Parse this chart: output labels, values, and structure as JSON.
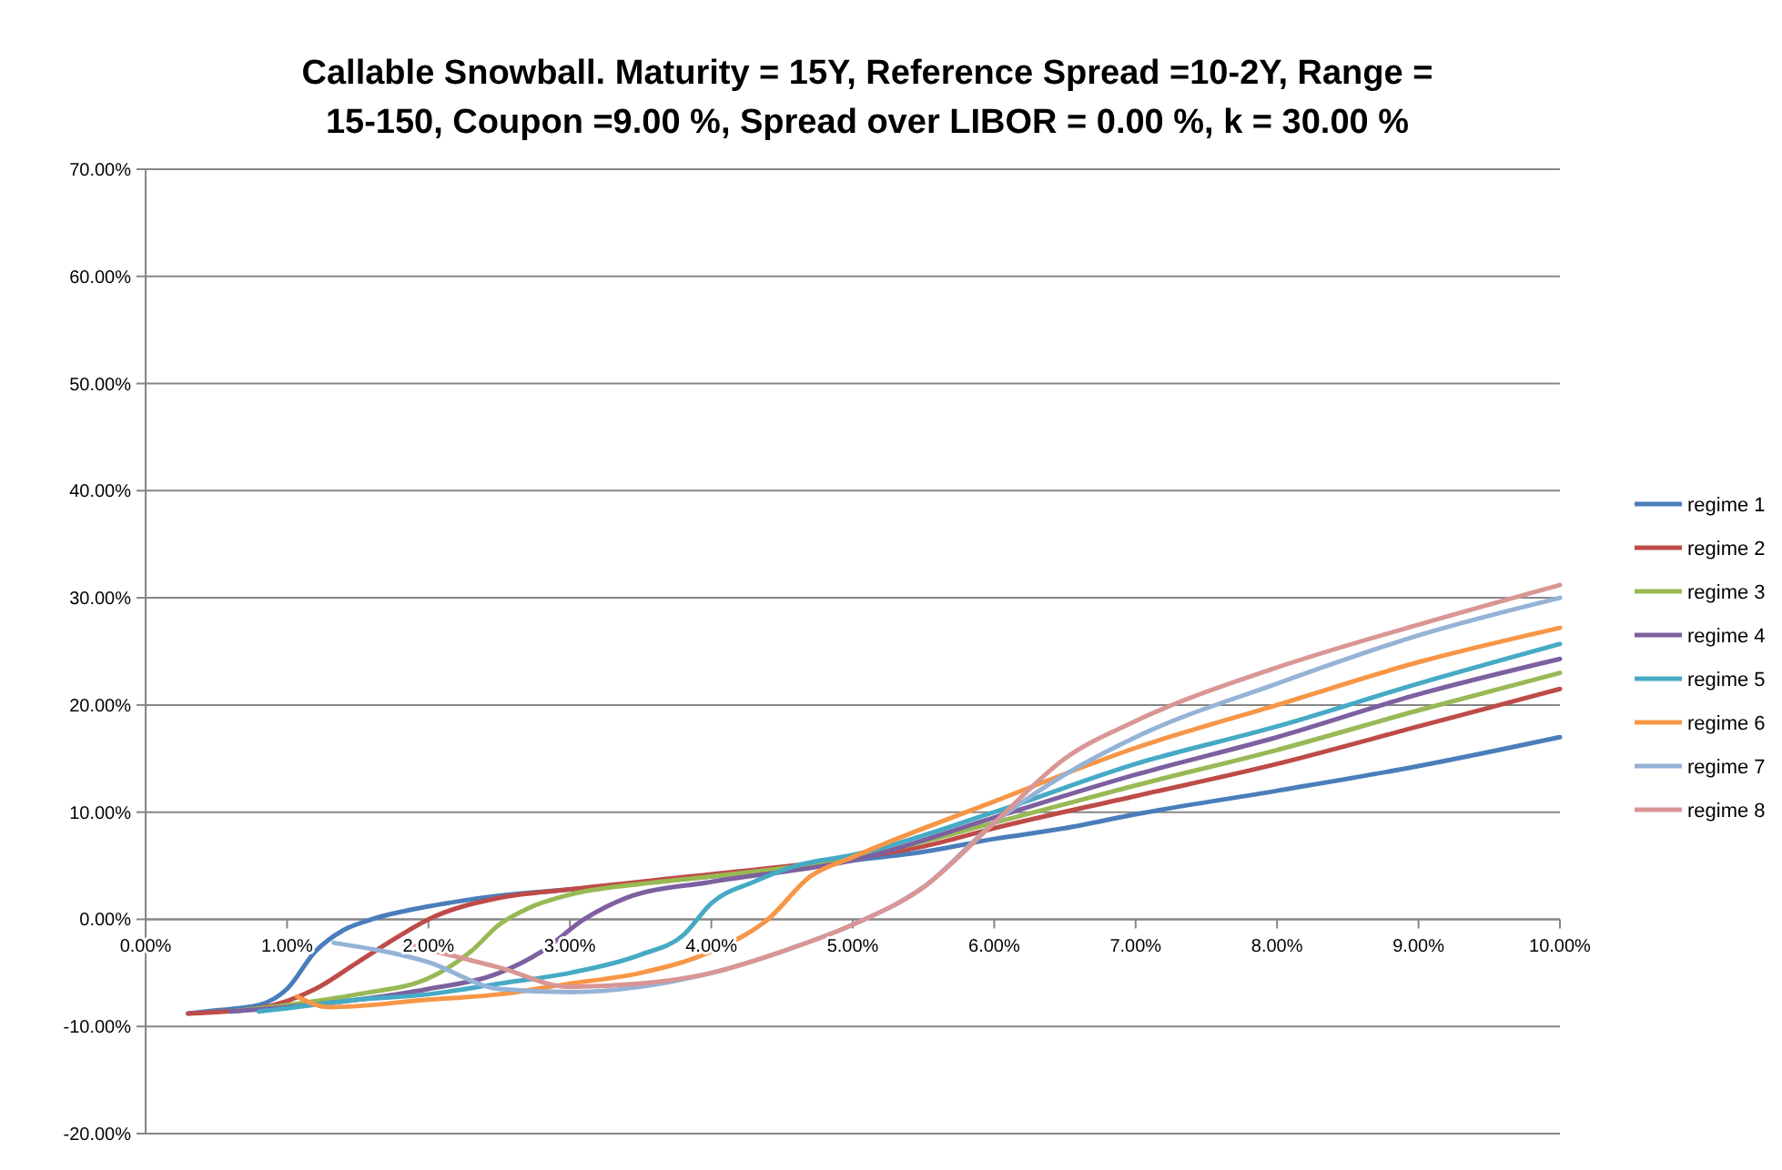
{
  "chart_data": {
    "type": "line",
    "title": "Callable Snowball. Maturity = 15Y, Reference Spread =10-2Y, Range = 15-150, Coupon =9.00 %, Spread over LIBOR = 0.00 %, k = 30.00 %",
    "xlim": [
      0,
      10
    ],
    "xticks": [
      {
        "value": 0,
        "label": "0.00%"
      },
      {
        "value": 1,
        "label": "1.00%"
      },
      {
        "value": 2,
        "label": "2.00%"
      },
      {
        "value": 3,
        "label": "3.00%"
      },
      {
        "value": 4,
        "label": "4.00%"
      },
      {
        "value": 5,
        "label": "5.00%"
      },
      {
        "value": 6,
        "label": "6.00%"
      },
      {
        "value": 7,
        "label": "7.00%"
      },
      {
        "value": 8,
        "label": "8.00%"
      },
      {
        "value": 9,
        "label": "9.00%"
      },
      {
        "value": 10,
        "label": "10.00%"
      }
    ],
    "ylim": [
      -20,
      70
    ],
    "yticks": [
      {
        "value": -20,
        "label": "-20.00%"
      },
      {
        "value": -10,
        "label": "-10.00%"
      },
      {
        "value": 0,
        "label": "0.00%"
      },
      {
        "value": 10,
        "label": "10.00%"
      },
      {
        "value": 20,
        "label": "20.00%"
      },
      {
        "value": 30,
        "label": "30.00%"
      },
      {
        "value": 40,
        "label": "40.00%"
      },
      {
        "value": 50,
        "label": "50.00%"
      },
      {
        "value": 60,
        "label": "60.00%"
      },
      {
        "value": 70,
        "label": "70.00%"
      }
    ],
    "grid": "y",
    "legend": "right",
    "marker": "none",
    "line_style": "solid",
    "series": [
      {
        "name": "regime 1",
        "color": "#4a7ebb",
        "x": [
          0.3,
          0.5,
          0.8,
          1,
          1.2,
          1.4,
          1.6,
          2,
          2.5,
          3,
          4,
          5,
          5.5,
          6,
          6.5,
          7,
          8,
          9,
          10
        ],
        "values": [
          -8.8,
          -8.5,
          -8,
          -6.5,
          -3,
          -1,
          0,
          1.2,
          2.2,
          2.8,
          4,
          5.5,
          6.3,
          7.5,
          8.5,
          9.8,
          12,
          14.3,
          17
        ]
      },
      {
        "name": "regime 2",
        "color": "#be4b48",
        "x": [
          0.3,
          0.8,
          1.2,
          1.5,
          1.8,
          2,
          2.5,
          3,
          4,
          5,
          5.5,
          6,
          7,
          8,
          9,
          10
        ],
        "values": [
          -8.8,
          -8.3,
          -6.5,
          -4,
          -1.5,
          0,
          2,
          2.8,
          4.2,
          5.7,
          6.8,
          8.5,
          11.5,
          14.5,
          18,
          21.5
        ]
      },
      {
        "name": "regime 3",
        "color": "#98b954",
        "x": [
          0.6,
          1,
          1.5,
          2,
          2.3,
          2.5,
          2.7,
          3,
          3.5,
          4,
          5,
          6,
          7,
          8,
          9,
          10
        ],
        "values": [
          -8.6,
          -8,
          -7,
          -5.5,
          -3,
          -0.5,
          1,
          2.3,
          3.3,
          4,
          5.7,
          9,
          12.5,
          15.8,
          19.5,
          23
        ]
      },
      {
        "name": "regime 4",
        "color": "#7d60a0",
        "x": [
          0.6,
          1,
          1.5,
          2,
          2.5,
          2.8,
          3.1,
          3.4,
          4,
          5,
          6,
          7,
          8,
          9,
          10
        ],
        "values": [
          -8.6,
          -8.2,
          -7.5,
          -6.5,
          -5,
          -3,
          0,
          2,
          3.5,
          5.5,
          9.5,
          13.5,
          17,
          21,
          24.3
        ]
      },
      {
        "name": "regime 5",
        "color": "#46aac5",
        "x": [
          0.8,
          1,
          1.5,
          2,
          2.5,
          3,
          3.5,
          3.8,
          4,
          4.3,
          4.6,
          5,
          6,
          7,
          8,
          9,
          10
        ],
        "values": [
          -8.6,
          -8.3,
          -7.5,
          -7,
          -6,
          -5,
          -3.3,
          -1.5,
          1.5,
          3.5,
          5,
          6,
          10,
          14.5,
          18,
          22,
          25.7
        ]
      },
      {
        "name": "regime 6",
        "color": "#f79646",
        "x": [
          1.07,
          1.3,
          2,
          2.5,
          3,
          3.5,
          4,
          4.4,
          4.7,
          5,
          6,
          7,
          8,
          9,
          10
        ],
        "values": [
          -7.2,
          -8.2,
          -7.5,
          -7,
          -6,
          -5,
          -3,
          0,
          4,
          5.8,
          11,
          16,
          20,
          24,
          27.2
        ]
      },
      {
        "name": "regime 7",
        "color": "#95b3d7",
        "x": [
          1.33,
          2,
          2.5,
          3,
          3.5,
          4,
          4.5,
          5,
          5.5,
          6,
          6.5,
          7,
          8,
          9,
          10
        ],
        "values": [
          -2.2,
          -4,
          -6.5,
          -6.8,
          -6.3,
          -5,
          -3,
          -0.5,
          3,
          9,
          13.5,
          17,
          22,
          26.5,
          30
        ]
      },
      {
        "name": "regime 8",
        "color": "#d99694",
        "x": [
          1.83,
          2.5,
          3,
          3.5,
          4,
          4.5,
          5,
          5.5,
          6,
          6.5,
          7,
          8,
          9,
          10
        ],
        "values": [
          -2.3,
          -4.5,
          -6.3,
          -6,
          -5,
          -3,
          -0.5,
          3,
          9,
          15,
          18.5,
          23.5,
          27.5,
          31.2
        ]
      }
    ]
  }
}
